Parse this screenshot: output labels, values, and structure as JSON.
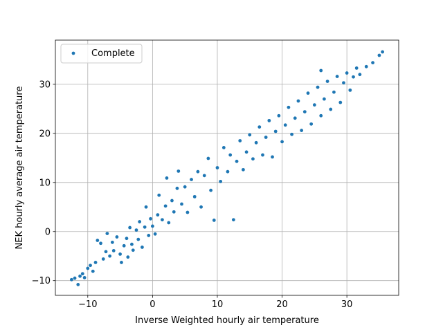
{
  "chart_data": {
    "type": "scatter",
    "xlabel": "Inverse Weighted hourly air temperature",
    "ylabel": "NEK hourly average air temperature",
    "xlim": [
      -15,
      38
    ],
    "ylim": [
      -13,
      39
    ],
    "xticks": [
      -10,
      0,
      10,
      20,
      30
    ],
    "yticks": [
      -10,
      0,
      10,
      20,
      30
    ],
    "xtick_labels": [
      "−10",
      "0",
      "10",
      "20",
      "30"
    ],
    "ytick_labels": [
      "−10",
      "0",
      "10",
      "20",
      "30"
    ],
    "grid": true,
    "legend_position": "upper-left",
    "series": [
      {
        "name": "Complete",
        "color": "#1f77b4",
        "points": [
          [
            -12.5,
            -9.8
          ],
          [
            -12.0,
            -9.5
          ],
          [
            -11.5,
            -10.8
          ],
          [
            -11.2,
            -9.1
          ],
          [
            -10.8,
            -8.6
          ],
          [
            -10.5,
            -9.4
          ],
          [
            -10.0,
            -7.5
          ],
          [
            -9.6,
            -6.9
          ],
          [
            -9.2,
            -8.1
          ],
          [
            -8.8,
            -6.3
          ],
          [
            -8.5,
            -1.8
          ],
          [
            -8.0,
            -2.4
          ],
          [
            -7.6,
            -5.6
          ],
          [
            -7.2,
            -4.1
          ],
          [
            -7.0,
            -0.4
          ],
          [
            -6.6,
            -5.0
          ],
          [
            -6.2,
            -2.2
          ],
          [
            -6.0,
            -3.9
          ],
          [
            -5.5,
            -1.1
          ],
          [
            -5.0,
            -4.6
          ],
          [
            -4.8,
            -6.3
          ],
          [
            -4.4,
            -2.9
          ],
          [
            -4.0,
            -1.4
          ],
          [
            -3.8,
            -5.2
          ],
          [
            -3.5,
            0.8
          ],
          [
            -3.2,
            -2.6
          ],
          [
            -3.0,
            -3.8
          ],
          [
            -2.5,
            0.3
          ],
          [
            -2.2,
            -1.6
          ],
          [
            -2.0,
            2.0
          ],
          [
            -1.6,
            -3.2
          ],
          [
            -1.2,
            0.9
          ],
          [
            -1.0,
            5.0
          ],
          [
            -0.6,
            -0.8
          ],
          [
            -0.3,
            2.6
          ],
          [
            0.0,
            1.1
          ],
          [
            0.4,
            -0.5
          ],
          [
            0.8,
            3.4
          ],
          [
            1.0,
            7.4
          ],
          [
            1.5,
            2.4
          ],
          [
            2.0,
            5.2
          ],
          [
            2.2,
            10.9
          ],
          [
            2.5,
            1.8
          ],
          [
            3.0,
            6.3
          ],
          [
            3.3,
            4.0
          ],
          [
            3.8,
            8.8
          ],
          [
            4.0,
            12.3
          ],
          [
            4.5,
            5.6
          ],
          [
            5.0,
            9.1
          ],
          [
            5.4,
            3.9
          ],
          [
            6.0,
            10.6
          ],
          [
            6.5,
            7.1
          ],
          [
            7.0,
            12.2
          ],
          [
            7.5,
            5.0
          ],
          [
            8.0,
            11.4
          ],
          [
            8.6,
            14.9
          ],
          [
            9.0,
            8.4
          ],
          [
            9.5,
            2.3
          ],
          [
            10.0,
            13.0
          ],
          [
            10.5,
            10.2
          ],
          [
            11.0,
            17.1
          ],
          [
            11.6,
            12.2
          ],
          [
            12.0,
            15.6
          ],
          [
            12.5,
            2.4
          ],
          [
            13.0,
            14.3
          ],
          [
            13.5,
            18.5
          ],
          [
            14.0,
            12.6
          ],
          [
            14.5,
            16.2
          ],
          [
            15.0,
            19.7
          ],
          [
            15.5,
            14.8
          ],
          [
            16.0,
            18.1
          ],
          [
            16.5,
            21.3
          ],
          [
            17.0,
            15.6
          ],
          [
            17.5,
            19.2
          ],
          [
            18.0,
            22.6
          ],
          [
            18.5,
            15.2
          ],
          [
            19.0,
            20.4
          ],
          [
            19.5,
            23.6
          ],
          [
            20.0,
            18.3
          ],
          [
            20.5,
            21.7
          ],
          [
            21.0,
            25.3
          ],
          [
            21.5,
            19.8
          ],
          [
            22.0,
            23.1
          ],
          [
            22.5,
            26.6
          ],
          [
            23.0,
            20.6
          ],
          [
            23.5,
            24.4
          ],
          [
            24.0,
            28.2
          ],
          [
            24.5,
            21.9
          ],
          [
            25.0,
            25.8
          ],
          [
            25.5,
            29.4
          ],
          [
            26.0,
            23.6
          ],
          [
            26.5,
            27.0
          ],
          [
            26.0,
            32.8
          ],
          [
            27.0,
            30.6
          ],
          [
            27.5,
            24.9
          ],
          [
            28.0,
            28.4
          ],
          [
            28.5,
            31.6
          ],
          [
            29.0,
            26.3
          ],
          [
            29.5,
            30.3
          ],
          [
            30.0,
            32.3
          ],
          [
            30.5,
            28.8
          ],
          [
            31.0,
            31.5
          ],
          [
            31.5,
            33.3
          ],
          [
            32.0,
            32.0
          ],
          [
            33.0,
            33.6
          ],
          [
            34.0,
            34.4
          ],
          [
            35.0,
            35.9
          ],
          [
            35.5,
            36.6
          ]
        ]
      }
    ]
  }
}
